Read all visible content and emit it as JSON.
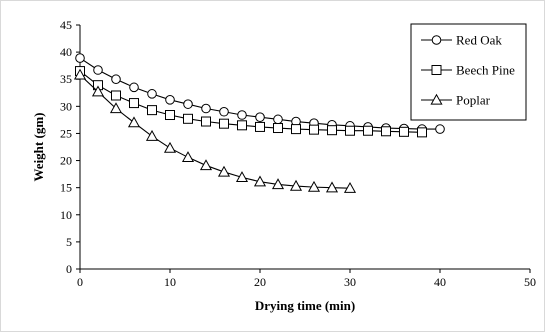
{
  "chart_data": {
    "type": "line",
    "title": "",
    "xlabel": "Drying time (min)",
    "ylabel": "Weight (gm)",
    "xlim": [
      0,
      50
    ],
    "ylim": [
      0,
      45
    ],
    "xticks": [
      0,
      10,
      20,
      30,
      40,
      50
    ],
    "yticks": [
      0,
      5,
      10,
      15,
      20,
      25,
      30,
      35,
      40,
      45
    ],
    "grid": false,
    "legend_position": "top-right",
    "series": [
      {
        "name": "Red Oak",
        "marker": "circle",
        "x": [
          0,
          2,
          4,
          6,
          8,
          10,
          12,
          14,
          16,
          18,
          20,
          22,
          24,
          26,
          28,
          30,
          32,
          34,
          36,
          38,
          40
        ],
        "y": [
          38.9,
          36.7,
          35.0,
          33.5,
          32.3,
          31.2,
          30.4,
          29.6,
          29.0,
          28.4,
          28.0,
          27.6,
          27.2,
          26.9,
          26.6,
          26.4,
          26.2,
          26.0,
          25.9,
          25.8,
          25.8
        ]
      },
      {
        "name": "Beech Pine",
        "marker": "square",
        "x": [
          0,
          2,
          4,
          6,
          8,
          10,
          12,
          14,
          16,
          18,
          20,
          22,
          24,
          26,
          28,
          30,
          32,
          34,
          36,
          38
        ],
        "y": [
          36.5,
          33.9,
          32.0,
          30.6,
          29.3,
          28.4,
          27.7,
          27.2,
          26.8,
          26.5,
          26.2,
          26.0,
          25.8,
          25.7,
          25.6,
          25.5,
          25.5,
          25.4,
          25.3,
          25.2
        ]
      },
      {
        "name": "Poplar",
        "marker": "triangle",
        "x": [
          0,
          2,
          4,
          6,
          8,
          10,
          12,
          14,
          16,
          18,
          20,
          22,
          24,
          26,
          28,
          30
        ],
        "y": [
          35.8,
          32.7,
          29.6,
          27.0,
          24.5,
          22.3,
          20.6,
          19.1,
          17.9,
          16.9,
          16.1,
          15.6,
          15.3,
          15.1,
          15.0,
          14.9
        ]
      }
    ],
    "colors": {
      "line": "#000000",
      "marker_fill": "#ffffff",
      "background": "#ffffff",
      "frame_border": "#d9d9d9"
    }
  }
}
